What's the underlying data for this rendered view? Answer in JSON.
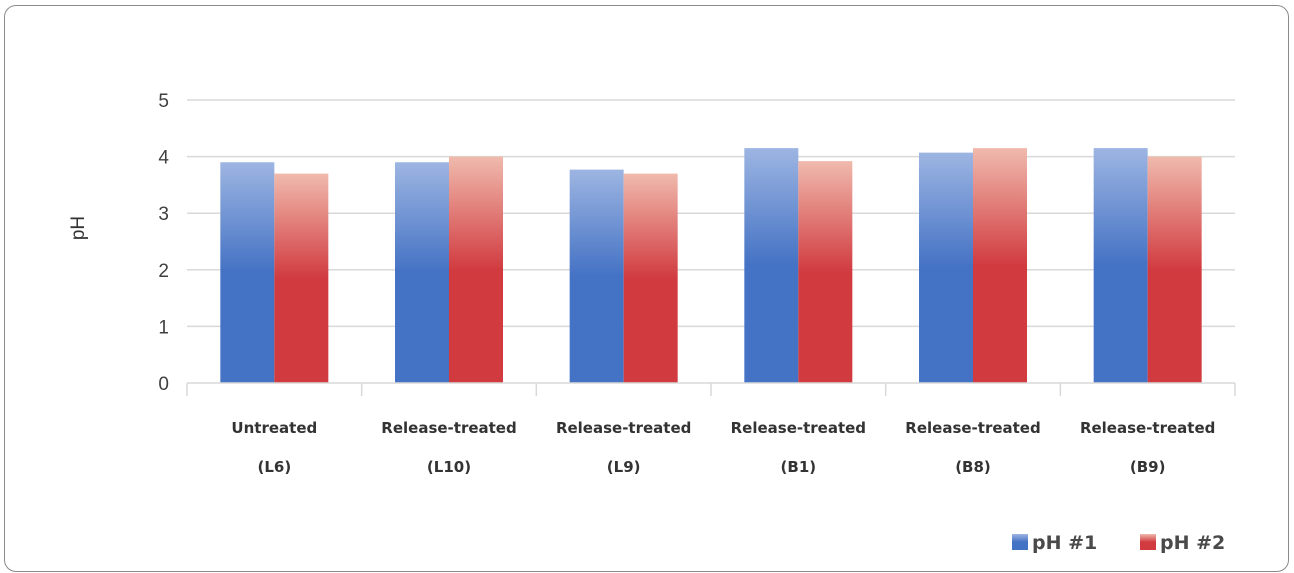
{
  "chart_data": {
    "type": "bar",
    "categories": [
      [
        "Untreated",
        "(L6)"
      ],
      [
        "Release-treated",
        "(L10)"
      ],
      [
        "Release-treated",
        "(L9)"
      ],
      [
        "Release-treated",
        "(B1)"
      ],
      [
        "Release-treated",
        "(B8)"
      ],
      [
        "Release-treated",
        "(B9)"
      ]
    ],
    "series": [
      {
        "name": "pH #1",
        "values": [
          3.9,
          3.9,
          3.77,
          4.15,
          4.07,
          4.15
        ],
        "color": "#4472C4"
      },
      {
        "name": "pH #2",
        "values": [
          3.7,
          4.0,
          3.7,
          3.92,
          4.15,
          4.0
        ],
        "color": "#D13B40"
      }
    ],
    "title": "",
    "xlabel": "",
    "ylabel": "pH",
    "ylim": [
      0,
      5
    ],
    "yticks": [
      0,
      1,
      2,
      3,
      4,
      5
    ],
    "grid": true,
    "legend": "bottom-right"
  }
}
